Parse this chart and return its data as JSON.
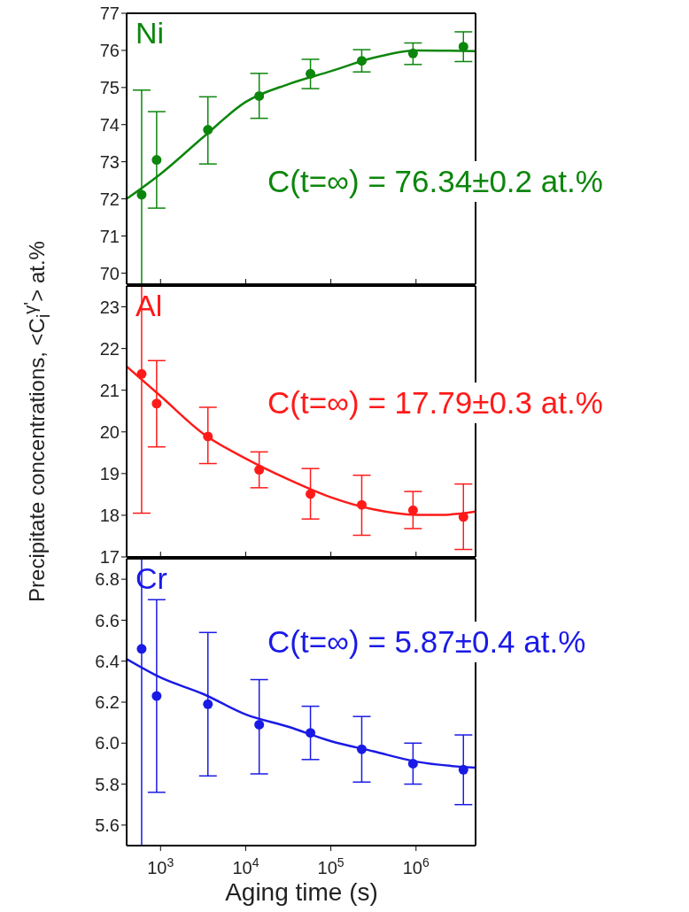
{
  "chart_data": [
    {
      "type": "scatter",
      "log": "x",
      "tick_labels": "y",
      "xlim": [
        400,
        5000000
      ],
      "xticks": [
        {
          "value": 1000,
          "label": null
        },
        {
          "value": 10000,
          "label": null
        },
        {
          "value": 100000,
          "label": null
        },
        {
          "value": 1000000,
          "label": null
        }
      ],
      "ylim": [
        69.7,
        77
      ],
      "yticks": [
        70,
        71,
        72,
        73,
        74,
        75,
        76,
        77
      ],
      "annotations": [
        "Ni",
        "C(t=∞) = 76.34±0.2 at.%"
      ],
      "series": [
        {
          "type": "scatter",
          "marker": "circle",
          "color": "#0c860c",
          "x": [
            600,
            900,
            3600,
            14400,
            57600,
            230400,
            921600,
            3600000
          ],
          "values": [
            72.11,
            73.05,
            73.86,
            74.77,
            75.37,
            75.72,
            75.92,
            76.1
          ],
          "errors": [
            [
              69.7,
              74.93
            ],
            [
              71.75,
              74.35
            ],
            [
              72.94,
              74.75
            ],
            [
              74.17,
              75.38
            ],
            [
              74.97,
              75.76
            ],
            [
              75.42,
              76.02
            ],
            [
              75.62,
              76.2
            ],
            [
              75.7,
              76.5
            ]
          ]
        },
        {
          "type": "line",
          "color": "#0c860c",
          "x": [
            400,
            1000,
            3162,
            10000,
            31623,
            100000,
            316228,
            1000000,
            5000000
          ],
          "values": [
            72.0,
            72.67,
            73.66,
            74.61,
            75.09,
            75.44,
            75.8,
            76.0,
            75.98
          ]
        }
      ]
    },
    {
      "type": "scatter",
      "log": "x",
      "tick_labels": "y",
      "ylabel": "Precipitate concentrations, <C$_{i}$$^{γ'}$> at.%",
      "xlim": [
        400,
        5000000
      ],
      "xticks": [
        {
          "value": 1000,
          "label": null
        },
        {
          "value": 10000,
          "label": null
        },
        {
          "value": 100000,
          "label": null
        },
        {
          "value": 1000000,
          "label": null
        }
      ],
      "ylim": [
        17,
        23.5
      ],
      "yticks": [
        17,
        18,
        19,
        20,
        21,
        22,
        23
      ],
      "annotations": [
        "Al",
        "C(t=∞) = 17.79±0.3 at.%"
      ],
      "series": [
        {
          "type": "scatter",
          "marker": "circle",
          "color": "#ff1a1a",
          "x": [
            600,
            900,
            3600,
            14400,
            57600,
            230400,
            921600,
            3600000
          ],
          "values": [
            21.39,
            20.68,
            19.89,
            19.09,
            18.51,
            18.25,
            18.12,
            17.96
          ],
          "errors": [
            [
              18.05,
              23.5
            ],
            [
              19.64,
              21.71
            ],
            [
              19.24,
              20.59
            ],
            [
              18.66,
              19.52
            ],
            [
              17.91,
              19.12
            ],
            [
              17.52,
              18.96
            ],
            [
              17.68,
              18.57
            ],
            [
              17.18,
              18.75
            ]
          ]
        },
        {
          "type": "line",
          "color": "#ff1a1a",
          "x": [
            400,
            1000,
            3162,
            10000,
            31623,
            100000,
            316228,
            1000000,
            2000000,
            5000000
          ],
          "values": [
            21.57,
            20.86,
            19.96,
            19.36,
            18.86,
            18.43,
            18.14,
            18.01,
            18.01,
            18.09
          ]
        }
      ]
    },
    {
      "type": "scatter",
      "log": "x",
      "xlabel": "Aging time (s)",
      "xlim": [
        400,
        5000000
      ],
      "xticks": [
        {
          "value": 1000,
          "label": "10$^{3}$"
        },
        {
          "value": 10000,
          "label": "10$^{4}$"
        },
        {
          "value": 100000,
          "label": "10$^{5}$"
        },
        {
          "value": 1000000,
          "label": "10$^{6}$"
        }
      ],
      "ylim": [
        5.5,
        6.9
      ],
      "yticks": [
        5.6,
        5.8,
        {
          "value": 6,
          "label": "6.0"
        },
        6.2,
        6.4,
        6.6,
        6.8
      ],
      "annotations": [
        "Cr",
        "C(t=∞) = 5.87±0.4 at.%"
      ],
      "series": [
        {
          "type": "scatter",
          "marker": "circle",
          "color": "#1a1ae6",
          "x": [
            600,
            900,
            3600,
            14400,
            57600,
            230400,
            921600,
            3600000
          ],
          "values": [
            6.46,
            6.23,
            6.19,
            6.09,
            6.05,
            5.97,
            5.9,
            5.87
          ],
          "errors": [
            [
              5.5,
              6.9
            ],
            [
              5.76,
              6.7
            ],
            [
              5.84,
              6.54
            ],
            [
              5.85,
              6.31
            ],
            [
              5.92,
              6.18
            ],
            [
              5.81,
              6.13
            ],
            [
              5.8,
              6.0
            ],
            [
              5.7,
              6.04
            ]
          ]
        },
        {
          "type": "line",
          "color": "#1a1ae6",
          "x": [
            400,
            1000,
            3162,
            10000,
            31623,
            100000,
            316228,
            1000000,
            5000000
          ],
          "values": [
            6.41,
            6.32,
            6.24,
            6.14,
            6.08,
            6.01,
            5.96,
            5.91,
            5.88
          ]
        }
      ]
    }
  ]
}
